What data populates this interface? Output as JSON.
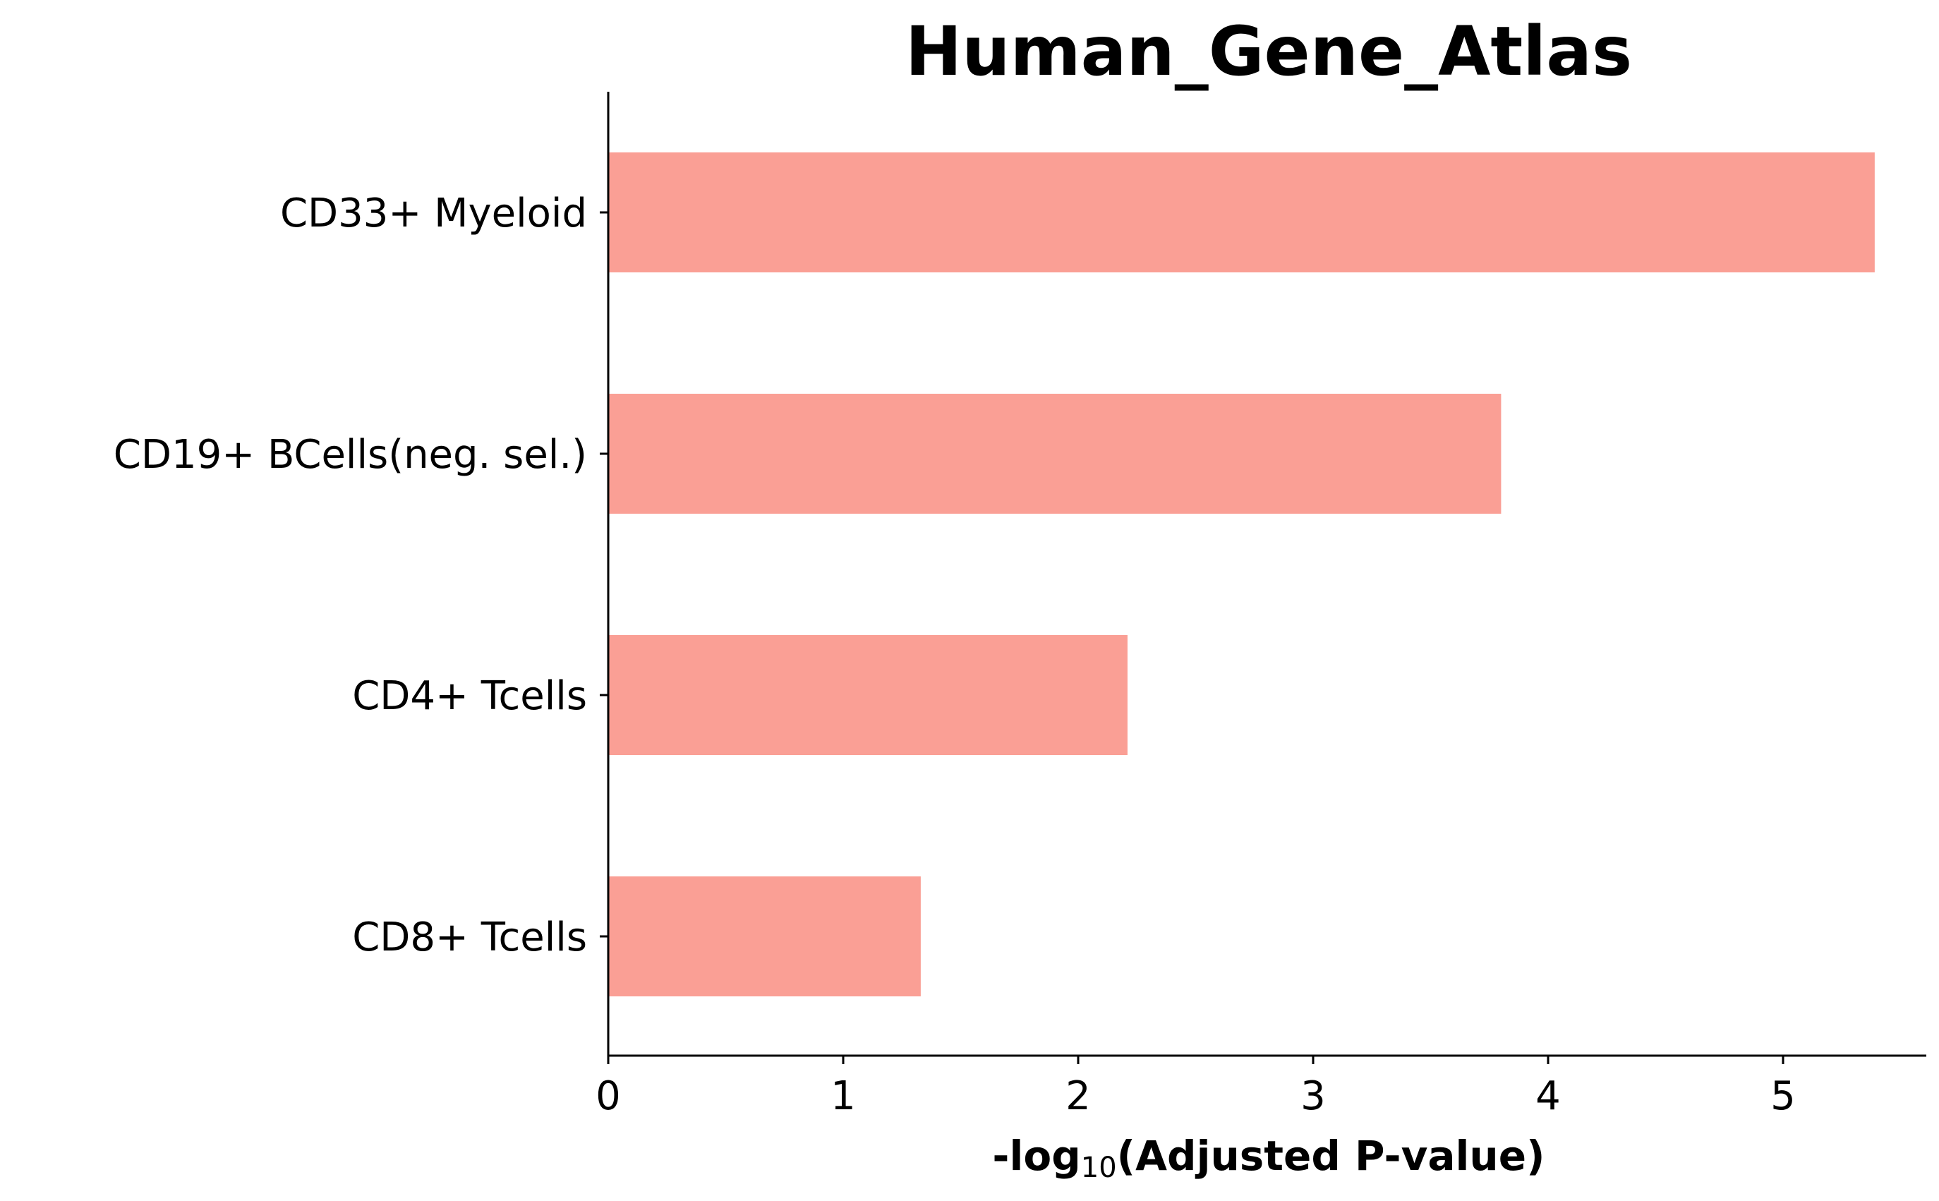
{
  "chart_data": {
    "type": "bar",
    "orientation": "horizontal",
    "title": "Human_Gene_Atlas",
    "categories": [
      "CD33+ Myeloid",
      "CD19+ BCells(neg. sel.)",
      "CD4+ Tcells",
      "CD8+ Tcells"
    ],
    "values": [
      5.39,
      3.8,
      2.21,
      1.33
    ],
    "xlabel_prefix": "-log",
    "xlabel_subscript": "10",
    "xlabel_suffix": "(Adjusted P-value)",
    "ylabel": "",
    "xlim": [
      0,
      5.66
    ],
    "xticks": [
      0,
      1,
      2,
      3,
      4,
      5
    ],
    "xtick_labels": [
      "0",
      "1",
      "2",
      "3",
      "4",
      "5"
    ],
    "grid": false,
    "bar_color": "#fa9f95",
    "axis_color": "#000000"
  }
}
